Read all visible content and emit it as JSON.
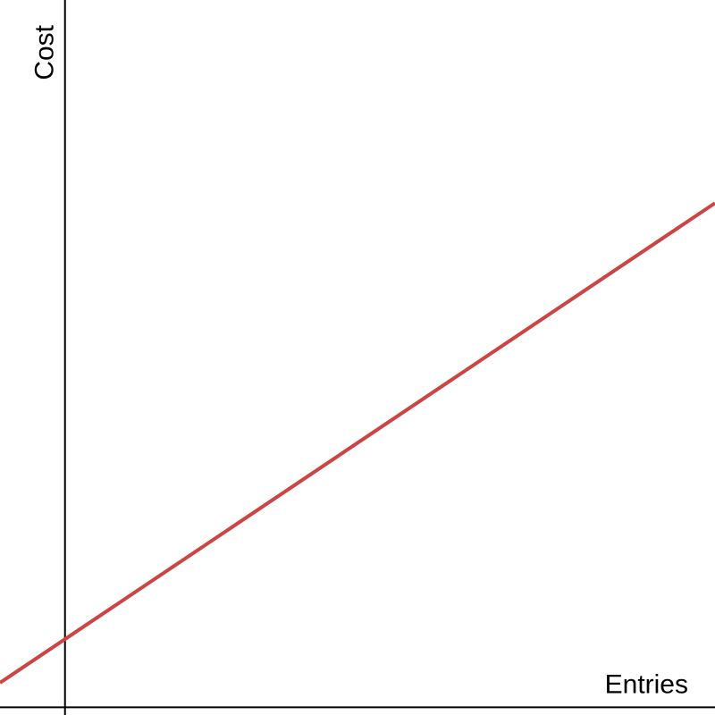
{
  "chart_data": {
    "type": "line",
    "title": "",
    "xlabel": "Entries",
    "ylabel": "Cost",
    "grid": false,
    "legend": "none",
    "xlim": [
      -1,
      10
    ],
    "ylim": [
      -0.11,
      10.1
    ],
    "series": [
      {
        "color": "#cc4444",
        "x": [
          -1,
          10
        ],
        "y": [
          0.35,
          7.2
        ]
      }
    ]
  }
}
